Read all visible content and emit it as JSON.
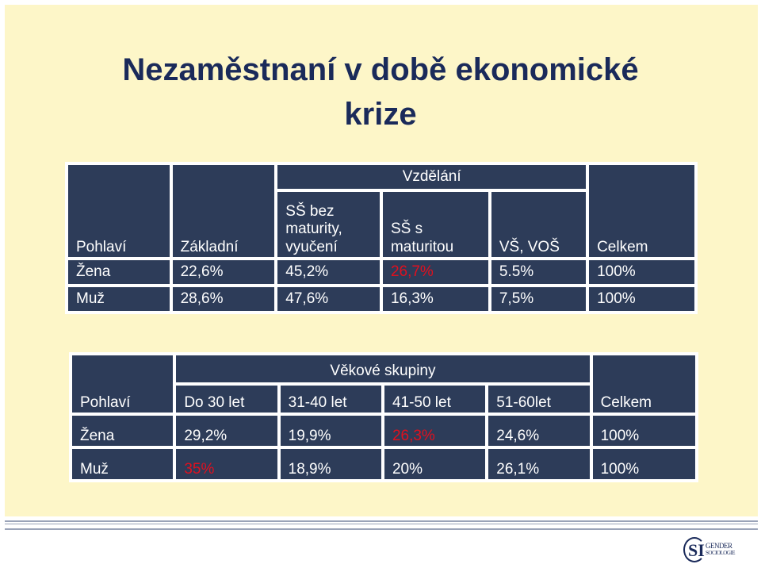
{
  "title": {
    "line1": "Nezaměstnaní v době ekonomické",
    "line2": "krize"
  },
  "education_table": {
    "group_header": "Vzdělání",
    "headers": [
      "Pohlaví",
      "Základní",
      "SŠ bez maturity, vyučení",
      "SŠ s maturitou",
      "VŠ, VOŠ",
      "Celkem"
    ],
    "header_lines": {
      "h2_l1": "SŠ bez",
      "h2_l2": "maturity,",
      "h2_l3": "vyučení",
      "h3_l1": "SŠ s",
      "h3_l2": "maturitou"
    },
    "rows": [
      {
        "label": "Žena",
        "values": [
          "22,6%",
          "45,2%",
          "26,7%",
          "5.5%",
          "100%"
        ]
      },
      {
        "label": "Muž",
        "values": [
          "28,6%",
          "47,6%",
          "16,3%",
          "7,5%",
          "100%"
        ]
      }
    ],
    "highlight_color": "#e0101e"
  },
  "age_table": {
    "group_header": "Věkové skupiny",
    "headers": [
      "Pohlaví",
      "Do 30 let",
      "31-40 let",
      "41-50 let",
      "51-60let",
      "Celkem"
    ],
    "rows": [
      {
        "label": "Žena",
        "values": [
          "29,2%",
          "19,9%",
          "26,3%",
          "24,6%",
          "100%"
        ]
      },
      {
        "label": "Muž",
        "values": [
          "35%",
          "18,9%",
          "20%",
          "26,1%",
          "100%"
        ]
      }
    ]
  },
  "logo": {
    "letters": "SI",
    "line1": "GENDER",
    "line2": "SOCIOLOGIE"
  },
  "colors": {
    "background": "#fdf6c8",
    "cell": "#2d3c59",
    "title": "#1a2a5a",
    "highlight": "#e0101e"
  }
}
